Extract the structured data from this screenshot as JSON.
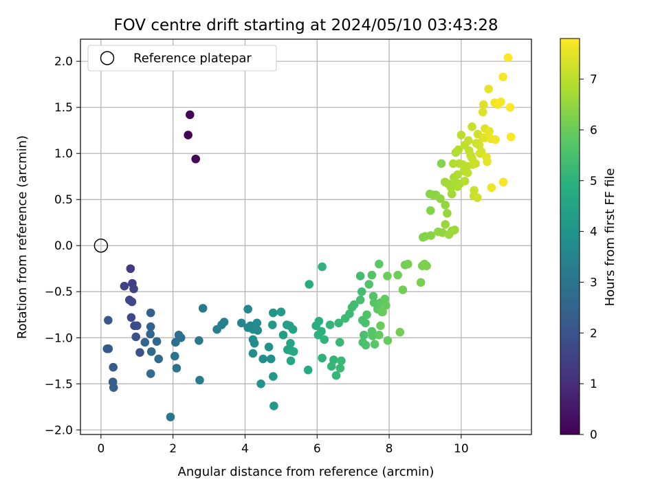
{
  "chart_data": {
    "type": "scatter",
    "title": "FOV centre drift starting at 2024/05/10 03:43:28",
    "xlabel": "Angular distance from reference (arcmin)",
    "ylabel": "Rotation from reference (arcmin)",
    "xlim": [
      -0.57,
      11.95
    ],
    "ylim": [
      -2.05,
      2.24
    ],
    "xticks": [
      0,
      2,
      4,
      6,
      8,
      10
    ],
    "xtick_labels": [
      "0",
      "2",
      "4",
      "6",
      "8",
      "10"
    ],
    "yticks": [
      -2.0,
      -1.5,
      -1.0,
      -0.5,
      0.0,
      0.5,
      1.0,
      1.5,
      2.0
    ],
    "ytick_labels": [
      "−2.0",
      "−1.5",
      "−1.0",
      "−0.5",
      "0.0",
      "0.5",
      "1.0",
      "1.5",
      "2.0"
    ],
    "grid": true,
    "legend": {
      "position": "top-left",
      "entries": [
        "Reference platepar"
      ]
    },
    "reference_point": {
      "x": 0,
      "y": 0,
      "label": "Reference platepar"
    },
    "colorbar": {
      "label": "Hours from first FF file",
      "min": 0,
      "max": 7.8,
      "ticks": [
        0,
        1,
        2,
        3,
        4,
        5,
        6,
        7
      ],
      "tick_labels": [
        "0",
        "1",
        "2",
        "3",
        "4",
        "5",
        "6",
        "7"
      ],
      "colormap": "viridis"
    },
    "series": [
      {
        "points": [
          [
            2.47,
            1.42,
            0.05
          ],
          [
            2.42,
            1.2,
            0.08
          ],
          [
            2.63,
            0.94,
            0.12
          ],
          [
            0.82,
            -0.25,
            1.35
          ],
          [
            0.87,
            -0.41,
            1.45
          ],
          [
            0.65,
            -0.44,
            1.5
          ],
          [
            0.91,
            -0.47,
            1.55
          ],
          [
            0.79,
            -0.59,
            1.6
          ],
          [
            0.86,
            -0.61,
            1.65
          ],
          [
            0.84,
            -0.78,
            1.75
          ],
          [
            0.93,
            -0.87,
            1.8
          ],
          [
            1.0,
            -0.87,
            1.85
          ],
          [
            0.97,
            -0.99,
            1.9
          ],
          [
            1.08,
            -1.16,
            1.95
          ],
          [
            0.2,
            -0.81,
            2.1
          ],
          [
            0.17,
            -1.12,
            2.15
          ],
          [
            0.21,
            -1.12,
            2.2
          ],
          [
            0.34,
            -1.32,
            2.25
          ],
          [
            0.33,
            -1.48,
            2.3
          ],
          [
            0.35,
            -1.54,
            2.35
          ],
          [
            1.38,
            -0.73,
            2.4
          ],
          [
            1.38,
            -0.88,
            2.45
          ],
          [
            1.37,
            -0.96,
            2.5
          ],
          [
            1.22,
            -1.05,
            2.55
          ],
          [
            1.55,
            -1.04,
            2.6
          ],
          [
            1.4,
            -1.15,
            2.65
          ],
          [
            1.6,
            -1.23,
            2.7
          ],
          [
            1.38,
            -1.39,
            2.75
          ],
          [
            2.07,
            -1.05,
            2.8
          ],
          [
            2.16,
            -0.97,
            2.85
          ],
          [
            2.22,
            -1.0,
            2.9
          ],
          [
            2.05,
            -1.2,
            2.95
          ],
          [
            2.1,
            -1.33,
            3.0
          ],
          [
            1.93,
            -1.86,
            3.05
          ],
          [
            2.72,
            -1.03,
            3.1
          ],
          [
            2.83,
            -0.68,
            3.15
          ],
          [
            2.74,
            -1.46,
            3.2
          ],
          [
            3.22,
            -0.91,
            3.3
          ],
          [
            3.35,
            -0.86,
            3.35
          ],
          [
            3.42,
            -0.83,
            3.4
          ],
          [
            3.9,
            -0.84,
            3.5
          ],
          [
            4.08,
            -0.69,
            3.55
          ],
          [
            4.15,
            -0.87,
            3.6
          ],
          [
            4.08,
            -0.89,
            3.62
          ],
          [
            4.22,
            -0.91,
            3.65
          ],
          [
            4.28,
            -0.89,
            3.68
          ],
          [
            4.33,
            -0.84,
            3.7
          ],
          [
            4.35,
            -0.92,
            3.72
          ],
          [
            4.22,
            -1.02,
            3.75
          ],
          [
            4.26,
            -1.06,
            3.78
          ],
          [
            4.22,
            -1.17,
            3.8
          ],
          [
            4.5,
            -1.23,
            3.85
          ],
          [
            4.66,
            -1.1,
            3.9
          ],
          [
            4.72,
            -1.23,
            3.95
          ],
          [
            4.44,
            -1.5,
            4.0
          ],
          [
            4.78,
            -0.73,
            4.05
          ],
          [
            4.76,
            -0.86,
            4.1
          ],
          [
            4.78,
            -1.42,
            4.15
          ],
          [
            4.8,
            -1.74,
            4.2
          ],
          [
            5.0,
            -0.72,
            4.25
          ],
          [
            5.06,
            -0.97,
            4.3
          ],
          [
            5.16,
            -0.86,
            4.35
          ],
          [
            5.24,
            -0.87,
            4.4
          ],
          [
            5.33,
            -0.91,
            4.45
          ],
          [
            5.18,
            -1.13,
            4.5
          ],
          [
            5.26,
            -1.06,
            4.55
          ],
          [
            5.28,
            -1.14,
            4.6
          ],
          [
            5.27,
            -1.25,
            4.65
          ],
          [
            5.35,
            -1.15,
            4.7
          ],
          [
            5.75,
            -1.35,
            4.75
          ],
          [
            5.78,
            -0.42,
            4.8
          ],
          [
            5.97,
            -0.87,
            4.85
          ],
          [
            6.05,
            -0.82,
            4.9
          ],
          [
            6.12,
            -0.93,
            4.95
          ],
          [
            6.03,
            -0.97,
            4.98
          ],
          [
            6.14,
            -1.22,
            5.0
          ],
          [
            6.14,
            -0.23,
            5.02
          ],
          [
            6.2,
            -1.02,
            5.05
          ],
          [
            6.36,
            -0.86,
            5.08
          ],
          [
            6.46,
            -1.24,
            5.1
          ],
          [
            6.4,
            -1.31,
            5.12
          ],
          [
            6.53,
            -1.41,
            5.15
          ],
          [
            6.6,
            -0.84,
            5.18
          ],
          [
            6.63,
            -1.05,
            5.2
          ],
          [
            6.67,
            -1.25,
            5.22
          ],
          [
            6.64,
            -1.33,
            5.25
          ],
          [
            6.78,
            -0.79,
            5.28
          ],
          [
            6.9,
            -0.74,
            5.3
          ],
          [
            6.97,
            -0.67,
            5.32
          ],
          [
            7.03,
            -0.64,
            5.35
          ],
          [
            7.2,
            -0.33,
            5.38
          ],
          [
            7.24,
            -0.5,
            5.4
          ],
          [
            7.2,
            -0.59,
            5.42
          ],
          [
            7.26,
            -0.81,
            5.45
          ],
          [
            7.34,
            -0.84,
            5.48
          ],
          [
            7.3,
            -0.97,
            5.5
          ],
          [
            7.27,
            -1.05,
            5.52
          ],
          [
            7.35,
            -1.08,
            5.55
          ],
          [
            7.38,
            -0.75,
            5.58
          ],
          [
            7.44,
            -0.42,
            5.6
          ],
          [
            7.52,
            -0.32,
            5.62
          ],
          [
            7.56,
            -0.55,
            5.65
          ],
          [
            7.58,
            -0.62,
            5.68
          ],
          [
            7.52,
            -0.93,
            5.7
          ],
          [
            7.54,
            -0.98,
            5.72
          ],
          [
            7.6,
            -1.07,
            5.75
          ],
          [
            7.72,
            -0.2,
            5.78
          ],
          [
            7.76,
            -0.62,
            5.8
          ],
          [
            7.68,
            -0.69,
            5.82
          ],
          [
            7.8,
            -0.72,
            5.85
          ],
          [
            7.72,
            -0.97,
            5.88
          ],
          [
            7.88,
            -0.58,
            5.9
          ],
          [
            7.91,
            -0.65,
            5.92
          ],
          [
            7.96,
            -1.03,
            5.95
          ],
          [
            7.76,
            -0.87,
            5.97
          ],
          [
            7.82,
            -0.72,
            6.0
          ],
          [
            7.95,
            -0.33,
            6.02
          ],
          [
            8.24,
            -0.32,
            6.05
          ],
          [
            8.3,
            -0.94,
            6.08
          ],
          [
            8.38,
            -0.48,
            6.1
          ],
          [
            8.44,
            -0.21,
            6.12
          ],
          [
            8.52,
            -0.2,
            6.15
          ],
          [
            8.88,
            -0.4,
            6.18
          ],
          [
            8.92,
            -0.22,
            6.2
          ],
          [
            8.98,
            -0.2,
            6.22
          ],
          [
            9.04,
            -0.22,
            6.25
          ],
          [
            8.94,
            0.09,
            6.28
          ],
          [
            9.0,
            0.1,
            6.3
          ],
          [
            9.15,
            0.38,
            6.32
          ],
          [
            9.16,
            0.11,
            6.35
          ],
          [
            9.13,
            0.56,
            6.38
          ],
          [
            9.22,
            0.55,
            6.4
          ],
          [
            9.3,
            0.55,
            6.42
          ],
          [
            9.42,
            0.51,
            6.45
          ],
          [
            9.48,
            0.14,
            6.48
          ],
          [
            9.36,
            0.15,
            6.5
          ],
          [
            9.56,
            0.44,
            6.52
          ],
          [
            9.61,
            0.35,
            6.55
          ],
          [
            9.56,
            0.23,
            6.58
          ],
          [
            9.66,
            0.12,
            6.6
          ],
          [
            9.74,
            0.16,
            6.62
          ],
          [
            9.82,
            0.17,
            6.65
          ],
          [
            9.74,
            0.56,
            6.68
          ],
          [
            9.55,
            0.69,
            6.7
          ],
          [
            9.64,
            0.67,
            6.72
          ],
          [
            9.72,
            0.63,
            6.75
          ],
          [
            9.8,
            0.74,
            6.78
          ],
          [
            9.86,
            0.68,
            6.8
          ],
          [
            9.9,
            0.64,
            6.82
          ],
          [
            9.96,
            0.67,
            6.85
          ],
          [
            9.78,
            0.89,
            6.88
          ],
          [
            9.85,
            1.01,
            6.9
          ],
          [
            9.92,
            1.04,
            6.92
          ],
          [
            9.95,
            0.89,
            6.95
          ],
          [
            10.04,
            0.88,
            6.98
          ],
          [
            10.08,
            0.81,
            7.0
          ],
          [
            10.16,
            0.86,
            7.02
          ],
          [
            10.18,
            0.79,
            7.05
          ],
          [
            10.22,
            1.03,
            7.08
          ],
          [
            10.26,
            0.98,
            7.1
          ],
          [
            10.32,
            0.88,
            7.12
          ],
          [
            10.35,
            0.54,
            7.15
          ],
          [
            10.36,
            0.6,
            7.18
          ],
          [
            10.4,
            0.89,
            7.2
          ],
          [
            10.42,
            1.11,
            7.22
          ],
          [
            10.46,
            1.21,
            7.25
          ],
          [
            10.5,
            1.09,
            7.28
          ],
          [
            10.52,
            1.0,
            7.3
          ],
          [
            10.56,
            1.02,
            7.32
          ],
          [
            10.6,
            1.17,
            7.35
          ],
          [
            10.6,
            1.45,
            7.38
          ],
          [
            10.62,
            1.53,
            7.4
          ],
          [
            10.66,
            1.27,
            7.42
          ],
          [
            10.66,
            1.17,
            7.45
          ],
          [
            10.7,
            0.96,
            7.48
          ],
          [
            10.72,
            0.91,
            7.5
          ],
          [
            10.76,
            1.7,
            7.52
          ],
          [
            10.78,
            1.24,
            7.55
          ],
          [
            10.82,
            1.16,
            7.58
          ],
          [
            10.84,
            0.63,
            7.6
          ],
          [
            10.93,
            1.55,
            7.62
          ],
          [
            10.95,
            1.15,
            7.65
          ],
          [
            11.02,
            1.53,
            7.68
          ],
          [
            11.1,
            1.56,
            7.7
          ],
          [
            11.16,
            1.83,
            7.72
          ],
          [
            11.17,
            0.69,
            7.74
          ],
          [
            11.3,
            2.04,
            7.76
          ],
          [
            11.36,
            1.5,
            7.77
          ],
          [
            11.38,
            1.18,
            7.78
          ],
          [
            9.45,
            0.89,
            6.3
          ],
          [
            10.0,
            1.2,
            7.0
          ],
          [
            10.1,
            1.09,
            7.05
          ],
          [
            10.2,
            1.14,
            7.1
          ],
          [
            10.3,
            1.29,
            7.15
          ],
          [
            10.1,
            0.7,
            6.95
          ],
          [
            9.9,
            0.77,
            6.85
          ],
          [
            10.3,
            0.95,
            7.15
          ],
          [
            10.45,
            0.52,
            7.2
          ]
        ]
      }
    ]
  }
}
